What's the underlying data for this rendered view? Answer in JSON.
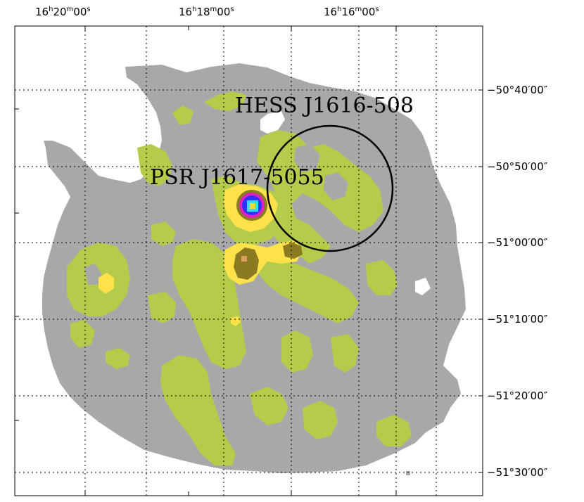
{
  "ra_labels": [
    {
      "h": "16",
      "m": "20",
      "s": "00"
    },
    {
      "h": "16",
      "m": "18",
      "s": "00"
    },
    {
      "h": "16",
      "m": "16",
      "s": "00"
    }
  ],
  "dec_labels": [
    "−50°40′00″",
    "−50°50′00″",
    "−51°00′00″",
    "−51°10′00″",
    "−51°20′00″",
    "−51°30′00″"
  ],
  "sources": {
    "hess": "HESS J1616-508",
    "psr": "PSR J1617-5055"
  },
  "colors": {
    "background": "#ffffff",
    "low_emission": "#a8a8a8",
    "mid_emission": "#b5cc4a",
    "high_emission": "#ffe14a",
    "peak_olive": "#8a7a20",
    "core_magenta": "#e020c0",
    "core_blue": "#3030ff",
    "core_cyan": "#30e0f0",
    "core_yellow": "#f0e020",
    "grid": "#000000"
  }
}
